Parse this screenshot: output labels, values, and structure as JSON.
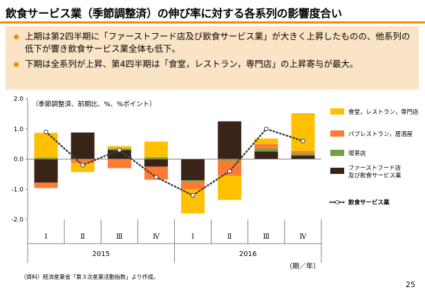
{
  "title": "飲食サービス業（季節調整済）の伸び率に対する各系列の影響度合い",
  "bullets": [
    "上期は第2四半期に「ファーストフード店及び飲食サービス業」が大きく上昇したものの、他系列の低下が響き飲食サービス業全体も低下。",
    "下期は全系列が上昇、第4四半期は「食堂，レストラン，専門店」の上昇寄与が最大。"
  ],
  "chart_data": {
    "type": "bar",
    "stacked": true,
    "unit_note": "（季節調整済、前期比、%、%ポイント）",
    "categories": [
      "Ⅰ",
      "Ⅱ",
      "Ⅲ",
      "Ⅳ",
      "Ⅰ",
      "Ⅱ",
      "Ⅲ",
      "Ⅳ"
    ],
    "years": [
      {
        "label": "2015",
        "span": [
          0,
          3
        ]
      },
      {
        "label": "2016",
        "span": [
          4,
          7
        ]
      }
    ],
    "xlabel": "（期／年）",
    "ylim": [
      -2.0,
      2.0
    ],
    "yticks": [
      "2.0",
      "1.0",
      "0.0",
      "-1.0",
      "-2.0"
    ],
    "ytick_values": [
      2.0,
      1.0,
      0.0,
      -1.0,
      -2.0
    ],
    "legend_position": "right",
    "series": [
      {
        "name": "ファーストフード店\n及び飲食サービス業",
        "color": "#3a2418",
        "values": [
          -0.78,
          0.88,
          0.3,
          -0.25,
          -0.7,
          1.25,
          0.25,
          0.12
        ]
      },
      {
        "name": "喫茶店",
        "color": "#70a040",
        "values": [
          0.05,
          -0.03,
          0.05,
          0.06,
          -0.05,
          -0.05,
          0.1,
          0.05
        ]
      },
      {
        "name": "パブレストラン，居酒屋",
        "color": "#ff7a33",
        "values": [
          -0.18,
          -0.1,
          -0.3,
          -0.43,
          -0.25,
          -0.5,
          0.15,
          0.1
        ]
      },
      {
        "name": "食堂，レストラン，専門店",
        "color": "#ffc000",
        "values": [
          0.82,
          -0.3,
          0.08,
          0.52,
          -0.8,
          -0.8,
          0.18,
          1.25
        ]
      }
    ],
    "total": {
      "name": "飲食サービス業",
      "color": "#404040",
      "values": [
        0.9,
        -0.2,
        0.3,
        -0.6,
        -1.2,
        -0.4,
        1.0,
        0.6
      ]
    }
  },
  "source": "（資料）経済産業省「第３次産業活動指数」より作成。",
  "page_number": "25"
}
